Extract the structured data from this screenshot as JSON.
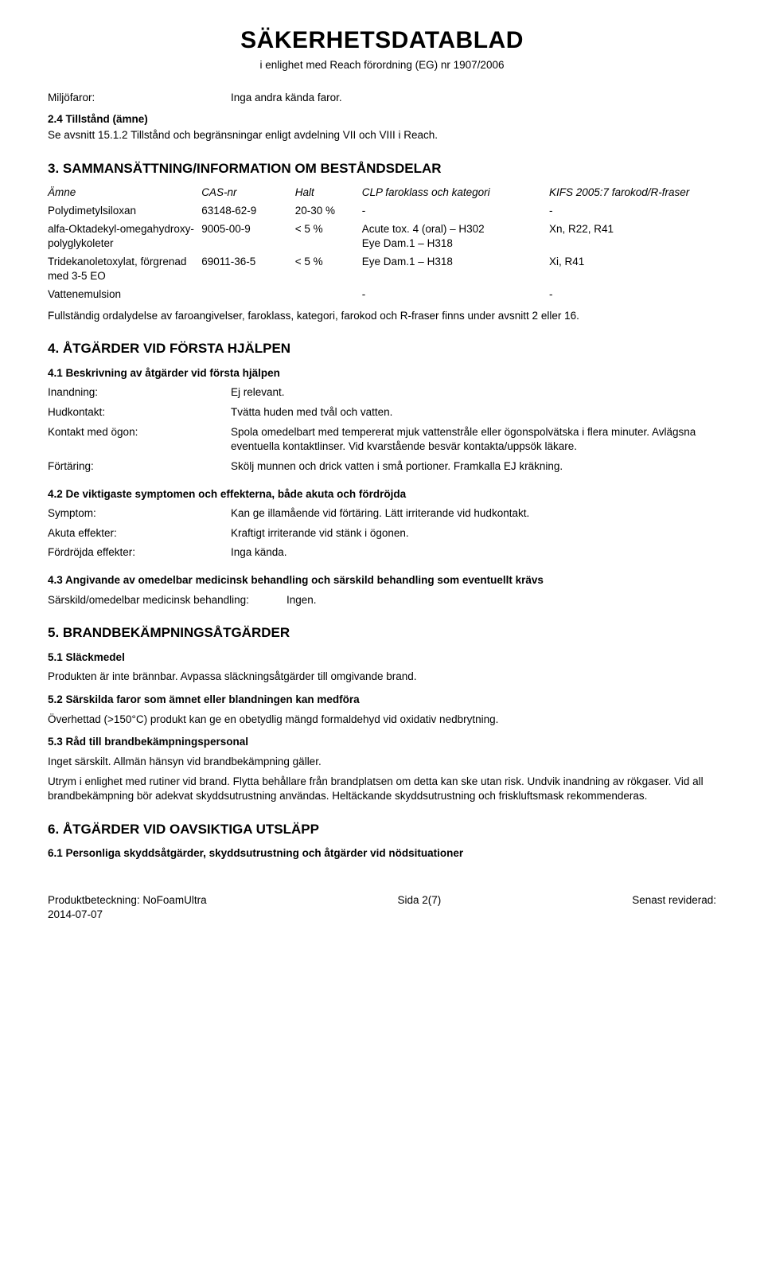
{
  "header": {
    "title": "SÄKERHETSDATABLAD",
    "subtitle": "i enlighet med Reach förordning (EG) nr 1907/2006"
  },
  "preamble": {
    "miljofaror_label": "Miljöfaror:",
    "miljofaror_value": "Inga andra kända faror.",
    "sub24_heading": "2.4 Tillstånd (ämne)",
    "sub24_text": "Se avsnitt 15.1.2 Tillstånd och begränsningar enligt avdelning VII och VIII i Reach."
  },
  "section3": {
    "heading": "3. SAMMANSÄTTNING/INFORMATION OM BESTÅNDSDELAR",
    "table": {
      "cols": [
        "Ämne",
        "CAS-nr",
        "Halt",
        "CLP faroklass och kategori",
        "KIFS 2005:7 farokod/R-fraser"
      ],
      "rows": [
        {
          "amne": "Polydimetylsiloxan",
          "cas": "63148-62-9",
          "halt": "20-30 %",
          "clp": "-",
          "kifs": "-"
        },
        {
          "amne": "alfa-Oktadekyl-omegahydroxy-polyglykoleter",
          "cas": "9005-00-9",
          "halt": "< 5 %",
          "clp": "Acute tox. 4 (oral) – H302\nEye Dam.1 – H318",
          "kifs": "Xn, R22, R41"
        },
        {
          "amne": "Tridekanoletoxylat, förgrenad med 3-5 EO",
          "cas": "69011-36-5",
          "halt": "< 5 %",
          "clp": "Eye Dam.1 – H318",
          "kifs": "Xi, R41"
        },
        {
          "amne": "Vattenemulsion",
          "cas": "",
          "halt": "",
          "clp": "-",
          "kifs": "-"
        }
      ]
    },
    "footnote": "Fullständig ordalydelse av faroangivelser, faroklass, kategori, farokod och R-fraser finns under avsnitt 2 eller 16."
  },
  "section4": {
    "heading": "4. ÅTGÄRDER VID FÖRSTA HJÄLPEN",
    "sub41": "4.1 Beskrivning av åtgärder vid första hjälpen",
    "rows41": [
      {
        "label": "Inandning:",
        "value": "Ej relevant."
      },
      {
        "label": "Hudkontakt:",
        "value": "Tvätta huden med tvål och vatten."
      },
      {
        "label": "Kontakt med ögon:",
        "value": "Spola omedelbart med tempererat mjuk vattenstråle eller ögonspolvätska i flera minuter. Avlägsna eventuella kontaktlinser. Vid kvarstående besvär kontakta/uppsök läkare."
      },
      {
        "label": "Förtäring:",
        "value": "Skölj munnen och drick vatten i små portioner. Framkalla EJ kräkning."
      }
    ],
    "sub42": "4.2 De viktigaste symptomen och effekterna, både akuta och fördröjda",
    "rows42": [
      {
        "label": "Symptom:",
        "value": "Kan ge illamående vid förtäring. Lätt irriterande vid hudkontakt."
      },
      {
        "label": "Akuta effekter:",
        "value": "Kraftigt irriterande vid stänk i ögonen."
      },
      {
        "label": "Fördröjda effekter:",
        "value": "Inga kända."
      }
    ],
    "sub43": "4.3 Angivande av omedelbar medicinsk behandling och särskild behandling som eventuellt krävs",
    "row43": {
      "label": "Särskild/omedelbar medicinsk behandling:",
      "value": "Ingen."
    },
    "row43_label_width": 300
  },
  "section5": {
    "heading": "5. BRANDBEKÄMPNINGSÅTGÄRDER",
    "sub51": "5.1 Släckmedel",
    "p51": "Produkten är inte brännbar. Avpassa släckningsåtgärder till omgivande brand.",
    "sub52": "5.2 Särskilda faror som ämnet eller blandningen kan medföra",
    "p52": "Överhettad (>150°C) produkt kan ge en obetydlig mängd formaldehyd vid oxidativ nedbrytning.",
    "sub53": "5.3 Råd till brandbekämpningspersonal",
    "p53a": "Inget särskilt. Allmän hänsyn vid brandbekämpning gäller.",
    "p53b": "Utrym i enlighet med rutiner vid brand. Flytta behållare från brandplatsen om detta kan ske utan risk. Undvik inandning av rökgaser. Vid all brandbekämpning bör adekvat skyddsutrustning användas. Heltäckande skyddsutrustning och friskluftsmask rekommenderas."
  },
  "section6": {
    "heading": "6. ÅTGÄRDER VID OAVSIKTIGA UTSLÄPP",
    "sub61": "6.1 Personliga skyddsåtgärder, skyddsutrustning och åtgärder vid nödsituationer"
  },
  "footer": {
    "left1": "Produktbeteckning: NoFoamUltra",
    "left2": "2014-07-07",
    "center": "Sida 2(7)",
    "right": "Senast reviderad:"
  }
}
